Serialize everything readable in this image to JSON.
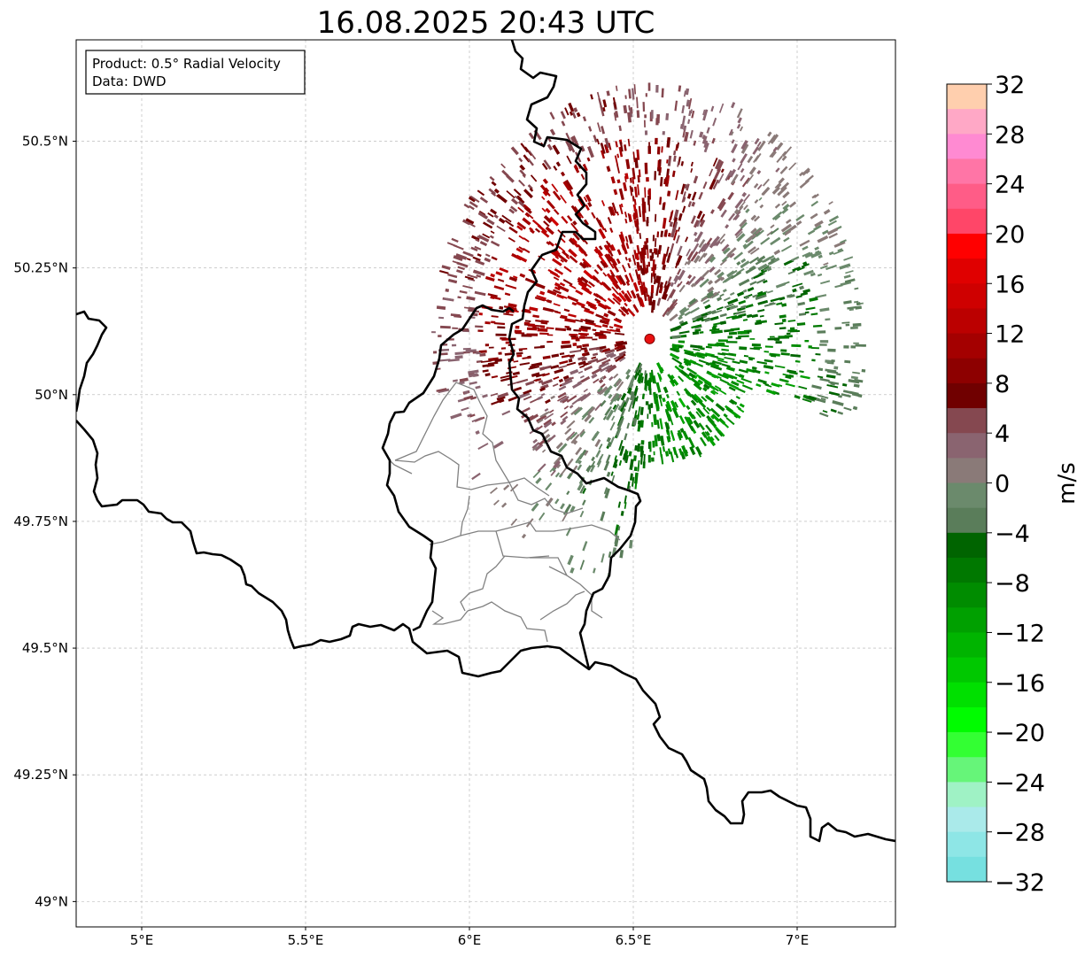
{
  "title": "16.08.2025 20:43 UTC",
  "info_box": {
    "product": "Product: 0.5° Radial Velocity",
    "data": "Data: DWD"
  },
  "map": {
    "lon_range": [
      4.8,
      7.3
    ],
    "lat_range": [
      48.95,
      50.7
    ],
    "lon_ticks": [
      {
        "value": 5.0,
        "label": "5°E"
      },
      {
        "value": 5.5,
        "label": "5.5°E"
      },
      {
        "value": 6.0,
        "label": "6°E"
      },
      {
        "value": 6.5,
        "label": "6.5°E"
      },
      {
        "value": 7.0,
        "label": "7°E"
      }
    ],
    "lat_ticks": [
      {
        "value": 49.0,
        "label": "49°N"
      },
      {
        "value": 49.25,
        "label": "49.25°N"
      },
      {
        "value": 49.5,
        "label": "49.5°N"
      },
      {
        "value": 49.75,
        "label": "49.75°N"
      },
      {
        "value": 50.0,
        "label": "50°N"
      },
      {
        "value": 50.25,
        "label": "50.25°N"
      },
      {
        "value": 50.5,
        "label": "50.5°N"
      }
    ],
    "grid": true,
    "radar_site": {
      "lon": 6.55,
      "lat": 50.11,
      "color": "#e81010"
    },
    "border_color": "#000000",
    "subregion_color": "#808080"
  },
  "colorbar": {
    "unit": "m/s",
    "vmin": -32,
    "vmax": 32,
    "tick_labels": [
      {
        "value": 32,
        "label": "32"
      },
      {
        "value": 28,
        "label": "28"
      },
      {
        "value": 24,
        "label": "24"
      },
      {
        "value": 20,
        "label": "20"
      },
      {
        "value": 16,
        "label": "16"
      },
      {
        "value": 12,
        "label": "12"
      },
      {
        "value": 8,
        "label": "8"
      },
      {
        "value": 4,
        "label": "4"
      },
      {
        "value": 0,
        "label": "0"
      },
      {
        "value": -4,
        "label": "−4"
      },
      {
        "value": -8,
        "label": "−8"
      },
      {
        "value": -12,
        "label": "−12"
      },
      {
        "value": -16,
        "label": "−16"
      },
      {
        "value": -20,
        "label": "−20"
      },
      {
        "value": -24,
        "label": "−24"
      },
      {
        "value": -28,
        "label": "−28"
      },
      {
        "value": -32,
        "label": "−32"
      }
    ],
    "colors_top_to_bottom": [
      "#ffcfae",
      "#ffa8c6",
      "#ff8ad2",
      "#ff75a6",
      "#ff5c87",
      "#ff4668",
      "#ff0000",
      "#e00000",
      "#cf0000",
      "#bb0000",
      "#a40000",
      "#8d0000",
      "#700000",
      "#854850",
      "#8a6470",
      "#8a7a78",
      "#6b8a6c",
      "#5a7d5a",
      "#006400",
      "#007800",
      "#008c00",
      "#00a000",
      "#00b400",
      "#00c800",
      "#00e000",
      "#00fc00",
      "#33ff33",
      "#66f579",
      "#9ff2c5",
      "#aaeaea",
      "#8ee6e6",
      "#76e0e0"
    ]
  }
}
